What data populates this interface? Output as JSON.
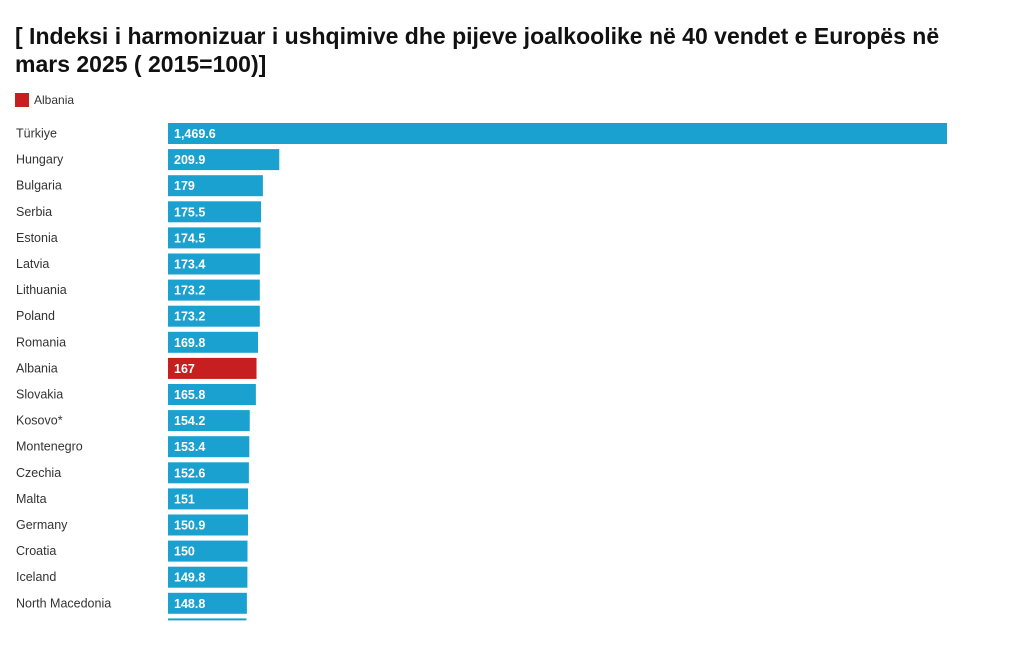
{
  "title": "[ Indeksi i harmonizuar i ushqimive dhe pijeve joalkoolike në 40 vendet e Europës në mars 2025 ( 2015=100)]",
  "legend": {
    "label": "Albania",
    "color": "#c71f1f"
  },
  "colors": {
    "default_bar": "#1aa1cf",
    "highlight_bar": "#c71f1f"
  },
  "chart_data": {
    "type": "bar",
    "orientation": "horizontal",
    "title": "[ Indeksi i harmonizuar i ushqimive dhe pijeve joalkoolike në 40 vendet e Europës në mars 2025 ( 2015=100)]",
    "xlabel": "",
    "ylabel": "",
    "grid": false,
    "legend_position": "top-left",
    "highlight": "Albania",
    "categories": [
      "Türkiye",
      "Hungary",
      "Bulgaria",
      "Serbia",
      "Estonia",
      "Latvia",
      "Lithuania",
      "Poland",
      "Romania",
      "Albania",
      "Slovakia",
      "Kosovo*",
      "Montenegro",
      "Czechia",
      "Malta",
      "Germany",
      "Croatia",
      "Iceland",
      "North Macedonia"
    ],
    "values": [
      1469.6,
      209.9,
      179,
      175.5,
      174.5,
      173.4,
      173.2,
      173.2,
      169.8,
      167,
      165.8,
      154.2,
      153.4,
      152.6,
      151,
      150.9,
      150,
      149.8,
      148.8
    ],
    "value_labels": [
      "1,469.6",
      "209.9",
      "179",
      "175.5",
      "174.5",
      "173.4",
      "173.2",
      "173.2",
      "169.8",
      "167",
      "165.8",
      "154.2",
      "153.4",
      "152.6",
      "151",
      "150.9",
      "150",
      "149.8",
      "148.8"
    ]
  }
}
